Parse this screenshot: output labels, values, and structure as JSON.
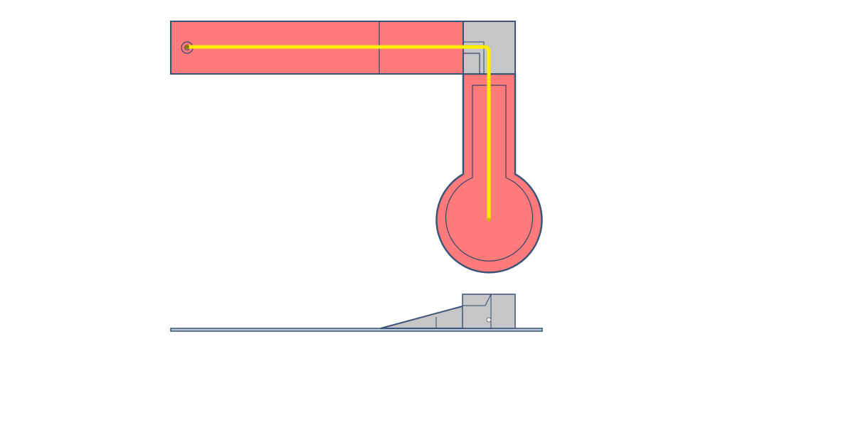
{
  "diagram": {
    "colors": {
      "background": "#ffffff",
      "part_fill": "#ff7b7b",
      "block_fill": "#c6c5c8",
      "outline": "#3c5478",
      "thin_line": "#34456a",
      "path_line": "#ffee00"
    },
    "top_view": {
      "parts": [
        {
          "name": "horizontal-arm",
          "shape": "rectangle"
        },
        {
          "name": "corner-block",
          "shape": "square"
        },
        {
          "name": "vertical-arm-with-disc",
          "shape": "keyhole"
        }
      ],
      "path": {
        "start": "pivot-hole",
        "bend": "corner-block",
        "end": "disc-center"
      }
    },
    "side_view": {
      "parts": [
        {
          "name": "base-plate",
          "shape": "thin-rectangle"
        },
        {
          "name": "ramp",
          "shape": "triangle"
        },
        {
          "name": "side-block",
          "shape": "rectangle"
        }
      ]
    }
  }
}
